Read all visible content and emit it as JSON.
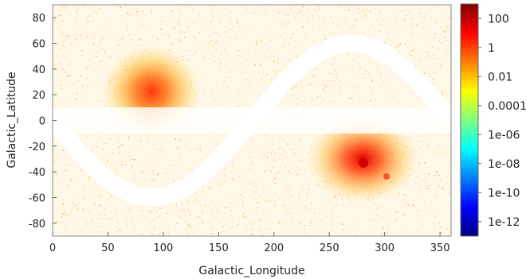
{
  "chart_data": {
    "type": "heatmap",
    "title": "",
    "xlabel": "Galactic_Longitude",
    "ylabel": "Galactic_Latitude",
    "xlim": [
      0,
      360
    ],
    "ylim": [
      -90,
      90
    ],
    "x_ticks": [
      0,
      50,
      100,
      150,
      200,
      250,
      300,
      350
    ],
    "y_ticks": [
      -80,
      -60,
      -40,
      -20,
      0,
      20,
      40,
      60,
      80
    ],
    "colorbar": {
      "scale": "log",
      "range": [
        1e-13,
        1000
      ],
      "tick_labels": [
        "100",
        "1",
        "0.01",
        "0.0001",
        "1e-06",
        "1e-08",
        "1e-10",
        "1e-12"
      ],
      "colormap": [
        "#00007f",
        "#0000ff",
        "#007fff",
        "#00ffff",
        "#7fff7f",
        "#ffff00",
        "#ff7f00",
        "#ff0000",
        "#7f0000"
      ]
    },
    "hotspots": [
      {
        "l": 90,
        "b": 20,
        "peak": "orange-red"
      },
      {
        "l": 280,
        "b": -33,
        "peak": "red"
      },
      {
        "l": 302,
        "b": -44,
        "peak": "orange-red"
      }
    ],
    "empty_regions": [
      "galactic-plane band |b| < 10",
      "ecliptic-like sinusoidal band"
    ]
  }
}
